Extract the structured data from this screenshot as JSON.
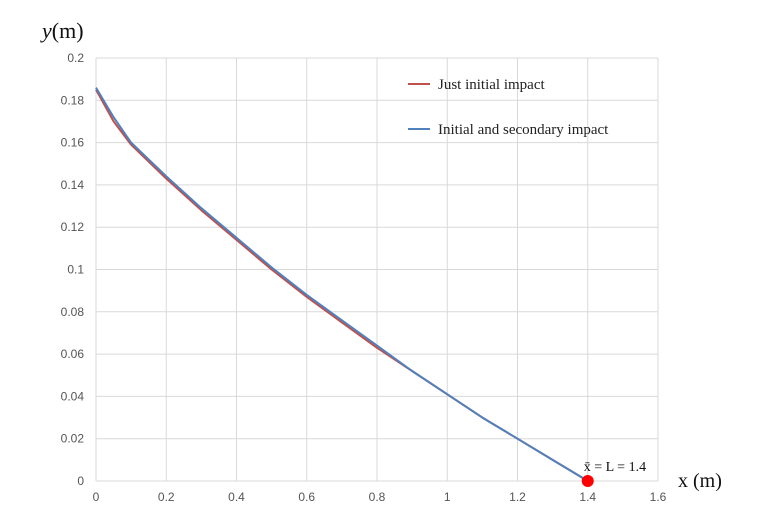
{
  "chart_data": {
    "type": "line",
    "title": "",
    "xlabel": "x (m)",
    "ylabel_main": "y",
    "ylabel_unit": "(m)",
    "xlim": [
      0,
      1.6
    ],
    "ylim": [
      0,
      0.2
    ],
    "x_ticks": [
      0,
      0.2,
      0.4,
      0.6,
      0.8,
      1,
      1.2,
      1.4,
      1.6
    ],
    "y_ticks": [
      0,
      0.02,
      0.04,
      0.06,
      0.08,
      0.1,
      0.12,
      0.14,
      0.16,
      0.18,
      0.2
    ],
    "x_tick_labels": [
      "0",
      "0.2",
      "0.4",
      "0.6",
      "0.8",
      "1",
      "1.2",
      "1.4",
      "1.6"
    ],
    "y_tick_labels": [
      "0",
      "0.02",
      "0.04",
      "0.06",
      "0.08",
      "0.1",
      "0.12",
      "0.14",
      "0.16",
      "0.18",
      "0.2"
    ],
    "grid": true,
    "legend_position": "top-right",
    "series": [
      {
        "name": "Just initial impact",
        "color": "#c0504d",
        "x": [
          0,
          0.05,
          0.1,
          0.2,
          0.3,
          0.4,
          0.5,
          0.6,
          0.7,
          0.8,
          0.9,
          1.0,
          1.1,
          1.2,
          1.3,
          1.4
        ],
        "y": [
          0.185,
          0.17,
          0.159,
          0.143,
          0.128,
          0.114,
          0.1,
          0.087,
          0.075,
          0.063,
          0.052,
          0.041,
          0.03,
          0.02,
          0.01,
          0.0
        ]
      },
      {
        "name": "Initial and secondary impact",
        "color": "#4f81bd",
        "x": [
          0,
          0.05,
          0.1,
          0.2,
          0.3,
          0.4,
          0.5,
          0.6,
          0.7,
          0.8,
          0.9,
          1.0,
          1.1,
          1.2,
          1.3,
          1.4
        ],
        "y": [
          0.186,
          0.172,
          0.16,
          0.144,
          0.129,
          0.115,
          0.101,
          0.088,
          0.076,
          0.064,
          0.052,
          0.041,
          0.03,
          0.02,
          0.01,
          0.0
        ]
      }
    ],
    "annotation": {
      "text": "x̄ = L = 1.4",
      "x": 1.4,
      "y": 0,
      "color": "#ff0000"
    }
  }
}
